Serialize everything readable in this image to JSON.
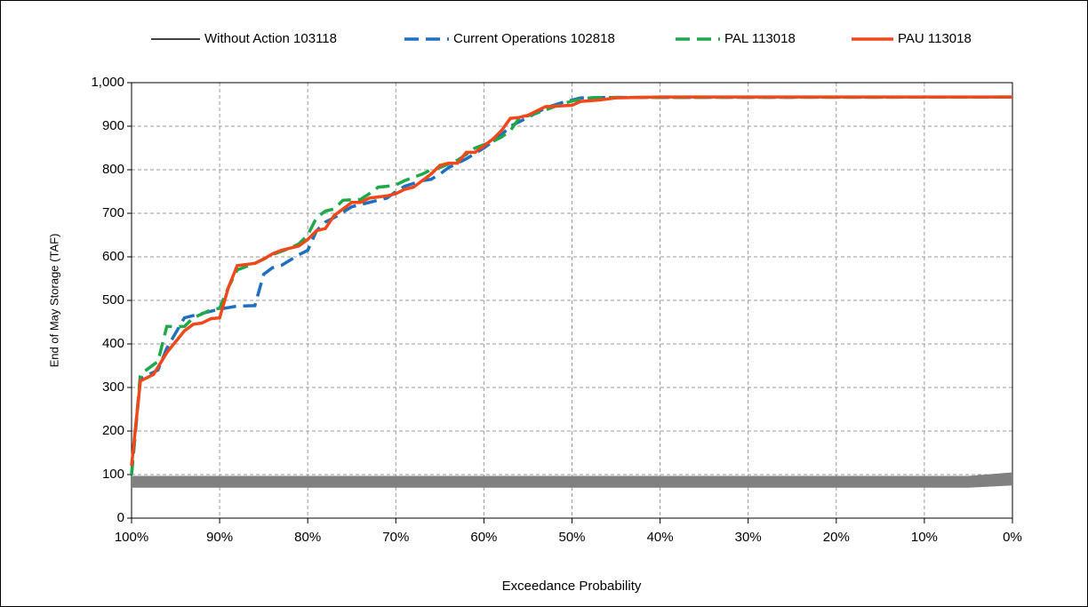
{
  "chart_data": {
    "type": "line",
    "x_label": "Exceedance Probability",
    "y_label": "End of  May Storage (TAF)",
    "xlim": [
      100,
      0
    ],
    "xticks": [
      {
        "value": 100,
        "label": "100%"
      },
      {
        "value": 90,
        "label": "90%"
      },
      {
        "value": 80,
        "label": "80%"
      },
      {
        "value": 70,
        "label": "70%"
      },
      {
        "value": 60,
        "label": "60%"
      },
      {
        "value": 50,
        "label": "50%"
      },
      {
        "value": 40,
        "label": "40%"
      },
      {
        "value": 30,
        "label": "30%"
      },
      {
        "value": 20,
        "label": "20%"
      },
      {
        "value": 10,
        "label": "10%"
      },
      {
        "value": 0,
        "label": "0%"
      }
    ],
    "ylim": [
      0,
      1000
    ],
    "yticks": [
      0,
      100,
      200,
      300,
      400,
      500,
      600,
      700,
      800,
      900,
      {
        "value": 1000,
        "label": "1,000"
      }
    ],
    "grid": true,
    "legend": "top",
    "band": {
      "color": "#808080",
      "x": [
        100,
        5,
        0
      ],
      "lower": [
        70,
        70,
        75
      ],
      "upper": [
        97,
        97,
        105
      ]
    },
    "series": [
      {
        "name": "Without Action 103118",
        "color": "#000000",
        "style": "solid",
        "x": [
          100,
          50,
          0
        ],
        "values": [
          85,
          85,
          88
        ]
      },
      {
        "name": "Current Operations 102818",
        "color": "#1f6fc0",
        "style": "dashed",
        "x": [
          100,
          99,
          97,
          96,
          94,
          92,
          90,
          88,
          86,
          85,
          84,
          83,
          81,
          80,
          79,
          78,
          77,
          75,
          73,
          71,
          70,
          69,
          67,
          66,
          65,
          64,
          62,
          60,
          58,
          57,
          55,
          53,
          51,
          49,
          45,
          0
        ],
        "values": [
          100,
          320,
          340,
          390,
          460,
          470,
          480,
          487,
          488,
          560,
          575,
          580,
          605,
          615,
          660,
          680,
          690,
          715,
          725,
          735,
          750,
          762,
          775,
          778,
          790,
          805,
          825,
          850,
          880,
          900,
          920,
          942,
          955,
          965,
          966,
          967
        ]
      },
      {
        "name": "PAL 113018",
        "color": "#1fa84a",
        "style": "dashed",
        "x": [
          100,
          99,
          98,
          97,
          96,
          94,
          93,
          91,
          90,
          89,
          88,
          86,
          84,
          82,
          81,
          80,
          79,
          78,
          77,
          76,
          74,
          73,
          72,
          71,
          70,
          69,
          67,
          66,
          65,
          63,
          62,
          61,
          59,
          58,
          57,
          56,
          54,
          52,
          50,
          48,
          45,
          0
        ],
        "values": [
          100,
          330,
          345,
          360,
          440,
          440,
          460,
          478,
          482,
          530,
          570,
          585,
          605,
          620,
          630,
          650,
          690,
          705,
          710,
          730,
          732,
          745,
          760,
          762,
          765,
          775,
          790,
          800,
          805,
          822,
          835,
          850,
          865,
          875,
          890,
          918,
          930,
          945,
          958,
          965,
          966,
          967
        ]
      },
      {
        "name": "PAU 113018",
        "color": "#f0471b",
        "style": "solid",
        "x": [
          100,
          99,
          97.5,
          96,
          94,
          93,
          92,
          91,
          90,
          89,
          88,
          86,
          85,
          84,
          83,
          81,
          80,
          79,
          78,
          77,
          76,
          75,
          74,
          73,
          71,
          70,
          69,
          68,
          67,
          66,
          65,
          64,
          63,
          62,
          61,
          60,
          59,
          58,
          57,
          56,
          55,
          54,
          53,
          51,
          50,
          49,
          47,
          45,
          40,
          0
        ],
        "values": [
          120,
          315,
          330,
          380,
          430,
          445,
          448,
          458,
          460,
          530,
          580,
          585,
          595,
          607,
          615,
          625,
          640,
          660,
          665,
          695,
          710,
          725,
          725,
          735,
          740,
          745,
          755,
          760,
          775,
          790,
          810,
          815,
          815,
          840,
          840,
          855,
          870,
          890,
          918,
          920,
          925,
          935,
          945,
          947,
          948,
          957,
          960,
          965,
          967,
          967
        ]
      }
    ]
  }
}
